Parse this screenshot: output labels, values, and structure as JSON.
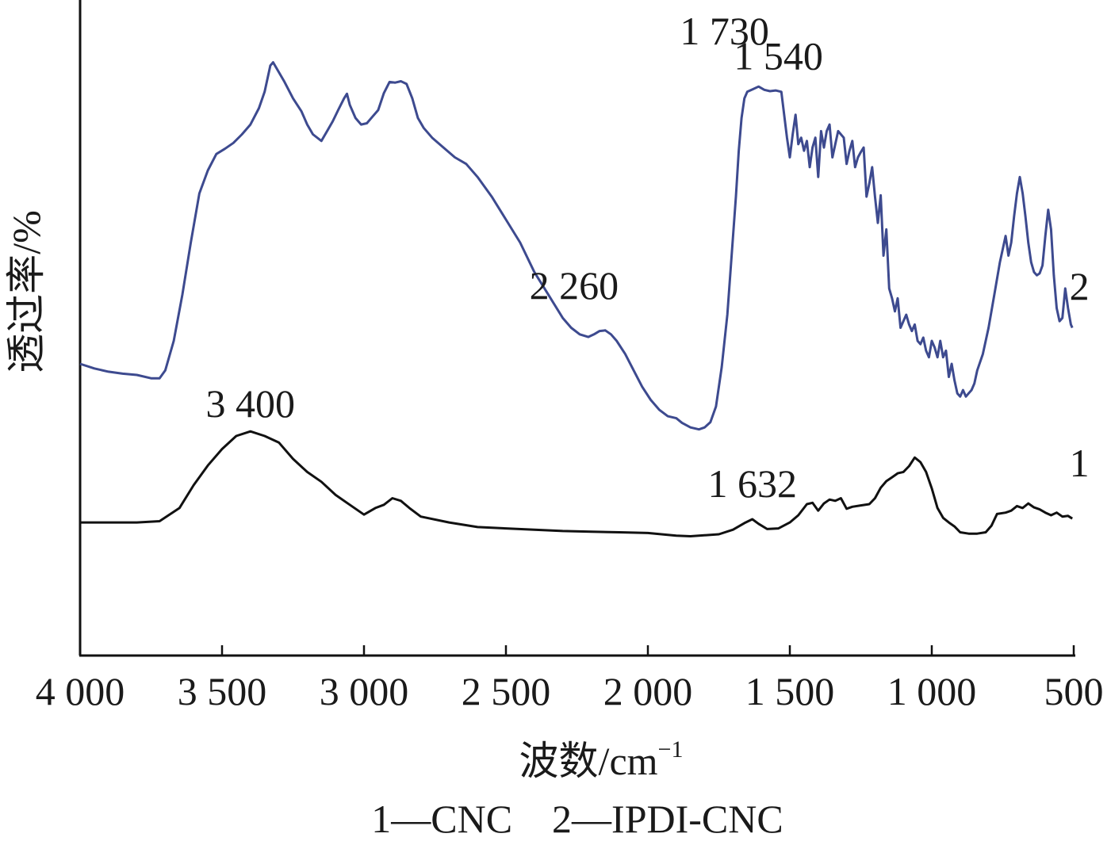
{
  "chart_data": {
    "type": "line",
    "xlabel": "波数/cm",
    "xlabel_superscript": "−1",
    "ylabel": "透过率/%",
    "xlim": [
      4000,
      500
    ],
    "x_reversed": true,
    "x_ticks": [
      {
        "value": 4000,
        "label": "4 000"
      },
      {
        "value": 3500,
        "label": "3 500"
      },
      {
        "value": 3000,
        "label": "3 000"
      },
      {
        "value": 2500,
        "label": "2 500"
      },
      {
        "value": 2000,
        "label": "2 000"
      },
      {
        "value": 1500,
        "label": "1 500"
      },
      {
        "value": 1000,
        "label": "1 000"
      },
      {
        "value": 500,
        "label": "500"
      }
    ],
    "ylim": [
      0,
      100
    ],
    "y_ticks_shown": false,
    "grid": false,
    "legend": {
      "placement": "bottom",
      "text": "1—CNC　2—IPDI-CNC"
    },
    "series": [
      {
        "name": "CNC",
        "id": "1",
        "color": "#111111",
        "points": [
          [
            4000,
            20.3
          ],
          [
            3900,
            20.3
          ],
          [
            3800,
            20.3
          ],
          [
            3720,
            20.5
          ],
          [
            3650,
            22.5
          ],
          [
            3600,
            26
          ],
          [
            3550,
            29
          ],
          [
            3500,
            31.5
          ],
          [
            3450,
            33.5
          ],
          [
            3400,
            34.2
          ],
          [
            3350,
            33.5
          ],
          [
            3300,
            32.5
          ],
          [
            3250,
            30
          ],
          [
            3200,
            28
          ],
          [
            3150,
            26.5
          ],
          [
            3100,
            24.5
          ],
          [
            3050,
            23
          ],
          [
            3000,
            21.5
          ],
          [
            2960,
            22.5
          ],
          [
            2930,
            23
          ],
          [
            2900,
            24
          ],
          [
            2870,
            23.6
          ],
          [
            2840,
            22.5
          ],
          [
            2800,
            21.2
          ],
          [
            2700,
            20.3
          ],
          [
            2600,
            19.6
          ],
          [
            2500,
            19.4
          ],
          [
            2400,
            19.2
          ],
          [
            2300,
            19
          ],
          [
            2200,
            18.9
          ],
          [
            2100,
            18.8
          ],
          [
            2000,
            18.7
          ],
          [
            1900,
            18.3
          ],
          [
            1850,
            18.2
          ],
          [
            1750,
            18.5
          ],
          [
            1700,
            19.2
          ],
          [
            1660,
            20.2
          ],
          [
            1632,
            20.8
          ],
          [
            1610,
            20.1
          ],
          [
            1580,
            19.3
          ],
          [
            1540,
            19.4
          ],
          [
            1500,
            20.3
          ],
          [
            1470,
            21.4
          ],
          [
            1440,
            23.1
          ],
          [
            1420,
            23.3
          ],
          [
            1400,
            22.1
          ],
          [
            1380,
            23.2
          ],
          [
            1360,
            23.8
          ],
          [
            1340,
            23.6
          ],
          [
            1320,
            24
          ],
          [
            1300,
            22.4
          ],
          [
            1280,
            22.7
          ],
          [
            1250,
            22.9
          ],
          [
            1220,
            23.1
          ],
          [
            1200,
            24
          ],
          [
            1180,
            25.6
          ],
          [
            1160,
            26.6
          ],
          [
            1140,
            27.2
          ],
          [
            1120,
            27.8
          ],
          [
            1100,
            28
          ],
          [
            1080,
            28.9
          ],
          [
            1060,
            30.2
          ],
          [
            1040,
            29.5
          ],
          [
            1020,
            28
          ],
          [
            1000,
            25.5
          ],
          [
            980,
            22.5
          ],
          [
            960,
            21
          ],
          [
            940,
            20.3
          ],
          [
            920,
            19.7
          ],
          [
            900,
            18.8
          ],
          [
            870,
            18.6
          ],
          [
            840,
            18.6
          ],
          [
            810,
            18.8
          ],
          [
            790,
            19.8
          ],
          [
            770,
            21.6
          ],
          [
            740,
            21.8
          ],
          [
            720,
            22.1
          ],
          [
            700,
            22.8
          ],
          [
            680,
            22.5
          ],
          [
            660,
            23.2
          ],
          [
            640,
            22.6
          ],
          [
            620,
            22.3
          ],
          [
            600,
            21.8
          ],
          [
            580,
            21.4
          ],
          [
            560,
            21.8
          ],
          [
            540,
            21.2
          ],
          [
            520,
            21.3
          ],
          [
            505,
            20.9
          ]
        ]
      },
      {
        "name": "IPDI-CNC",
        "id": "2",
        "color": "#3d4a8f",
        "points": [
          [
            4000,
            44.5
          ],
          [
            3950,
            43.8
          ],
          [
            3900,
            43.3
          ],
          [
            3850,
            43
          ],
          [
            3800,
            42.8
          ],
          [
            3750,
            42.3
          ],
          [
            3720,
            42.3
          ],
          [
            3700,
            43.5
          ],
          [
            3670,
            48
          ],
          [
            3640,
            55
          ],
          [
            3610,
            63
          ],
          [
            3580,
            70.5
          ],
          [
            3550,
            74
          ],
          [
            3520,
            76.5
          ],
          [
            3490,
            77.3
          ],
          [
            3460,
            78.2
          ],
          [
            3430,
            79.5
          ],
          [
            3400,
            81
          ],
          [
            3370,
            83.5
          ],
          [
            3350,
            86
          ],
          [
            3330,
            90
          ],
          [
            3320,
            90.5
          ],
          [
            3300,
            89
          ],
          [
            3280,
            87.5
          ],
          [
            3250,
            85
          ],
          [
            3220,
            83
          ],
          [
            3200,
            81
          ],
          [
            3180,
            79.5
          ],
          [
            3150,
            78.5
          ],
          [
            3130,
            80
          ],
          [
            3110,
            81.5
          ],
          [
            3090,
            83.3
          ],
          [
            3070,
            85
          ],
          [
            3060,
            85.7
          ],
          [
            3050,
            84
          ],
          [
            3030,
            82
          ],
          [
            3010,
            81
          ],
          [
            2990,
            81.2
          ],
          [
            2970,
            82.2
          ],
          [
            2950,
            83.2
          ],
          [
            2930,
            85.8
          ],
          [
            2910,
            87.5
          ],
          [
            2890,
            87.4
          ],
          [
            2870,
            87.6
          ],
          [
            2850,
            87.2
          ],
          [
            2830,
            85
          ],
          [
            2810,
            82
          ],
          [
            2790,
            80.5
          ],
          [
            2760,
            79
          ],
          [
            2720,
            77.5
          ],
          [
            2680,
            76
          ],
          [
            2640,
            75
          ],
          [
            2600,
            73
          ],
          [
            2550,
            70
          ],
          [
            2500,
            66.5
          ],
          [
            2450,
            63
          ],
          [
            2400,
            58.5
          ],
          [
            2350,
            55
          ],
          [
            2300,
            51.5
          ],
          [
            2270,
            50
          ],
          [
            2240,
            49
          ],
          [
            2210,
            48.6
          ],
          [
            2190,
            49
          ],
          [
            2170,
            49.5
          ],
          [
            2150,
            49.6
          ],
          [
            2130,
            49
          ],
          [
            2110,
            48
          ],
          [
            2080,
            46
          ],
          [
            2050,
            43.5
          ],
          [
            2020,
            41
          ],
          [
            1990,
            39
          ],
          [
            1960,
            37.5
          ],
          [
            1930,
            36.5
          ],
          [
            1900,
            36.2
          ],
          [
            1880,
            35.5
          ],
          [
            1850,
            34.8
          ],
          [
            1820,
            34.5
          ],
          [
            1800,
            34.8
          ],
          [
            1780,
            35.6
          ],
          [
            1760,
            38
          ],
          [
            1740,
            44
          ],
          [
            1720,
            52
          ],
          [
            1710,
            58
          ],
          [
            1700,
            64
          ],
          [
            1690,
            70
          ],
          [
            1680,
            77
          ],
          [
            1670,
            82
          ],
          [
            1660,
            85
          ],
          [
            1650,
            86
          ],
          [
            1630,
            86.4
          ],
          [
            1610,
            86.8
          ],
          [
            1590,
            86.3
          ],
          [
            1570,
            86.1
          ],
          [
            1550,
            86.2
          ],
          [
            1530,
            86
          ],
          [
            1510,
            79
          ],
          [
            1500,
            76
          ],
          [
            1490,
            79.5
          ],
          [
            1480,
            82.5
          ],
          [
            1470,
            78
          ],
          [
            1460,
            79
          ],
          [
            1450,
            77
          ],
          [
            1440,
            78.5
          ],
          [
            1430,
            74.5
          ],
          [
            1420,
            77.5
          ],
          [
            1410,
            79
          ],
          [
            1400,
            73
          ],
          [
            1390,
            80
          ],
          [
            1380,
            77.5
          ],
          [
            1370,
            80
          ],
          [
            1360,
            81
          ],
          [
            1350,
            76
          ],
          [
            1340,
            78
          ],
          [
            1330,
            80
          ],
          [
            1320,
            79.5
          ],
          [
            1310,
            79
          ],
          [
            1300,
            75
          ],
          [
            1290,
            77
          ],
          [
            1280,
            78.5
          ],
          [
            1270,
            74.5
          ],
          [
            1260,
            76
          ],
          [
            1250,
            76.8
          ],
          [
            1240,
            77.5
          ],
          [
            1230,
            70
          ],
          [
            1220,
            72
          ],
          [
            1210,
            74.5
          ],
          [
            1200,
            70
          ],
          [
            1190,
            66
          ],
          [
            1180,
            70.2
          ],
          [
            1170,
            61
          ],
          [
            1160,
            65
          ],
          [
            1150,
            56
          ],
          [
            1140,
            54.5
          ],
          [
            1130,
            52.5
          ],
          [
            1120,
            54.5
          ],
          [
            1110,
            50
          ],
          [
            1100,
            51
          ],
          [
            1090,
            52
          ],
          [
            1080,
            50.5
          ],
          [
            1070,
            49.5
          ],
          [
            1060,
            50.5
          ],
          [
            1050,
            48
          ],
          [
            1040,
            47.5
          ],
          [
            1030,
            48.5
          ],
          [
            1020,
            46.5
          ],
          [
            1010,
            45.5
          ],
          [
            1000,
            48
          ],
          [
            990,
            47
          ],
          [
            980,
            45.5
          ],
          [
            970,
            48
          ],
          [
            960,
            45.5
          ],
          [
            950,
            46.5
          ],
          [
            940,
            42.5
          ],
          [
            930,
            44.5
          ],
          [
            920,
            42
          ],
          [
            910,
            40
          ],
          [
            900,
            39.5
          ],
          [
            890,
            40.5
          ],
          [
            880,
            39.5
          ],
          [
            870,
            40
          ],
          [
            860,
            40.5
          ],
          [
            850,
            41.5
          ],
          [
            840,
            43.5
          ],
          [
            820,
            46
          ],
          [
            800,
            50
          ],
          [
            780,
            55
          ],
          [
            760,
            60
          ],
          [
            740,
            64
          ],
          [
            730,
            61
          ],
          [
            720,
            63
          ],
          [
            710,
            67
          ],
          [
            700,
            70.5
          ],
          [
            690,
            73
          ],
          [
            680,
            70.5
          ],
          [
            670,
            67
          ],
          [
            660,
            63
          ],
          [
            650,
            60
          ],
          [
            640,
            58.5
          ],
          [
            630,
            58
          ],
          [
            620,
            58.3
          ],
          [
            610,
            59.5
          ],
          [
            600,
            64
          ],
          [
            590,
            68
          ],
          [
            580,
            65
          ],
          [
            570,
            58
          ],
          [
            560,
            53
          ],
          [
            550,
            51
          ],
          [
            540,
            51.5
          ],
          [
            530,
            56
          ],
          [
            520,
            53
          ],
          [
            510,
            50.5
          ],
          [
            505,
            50
          ]
        ]
      }
    ],
    "annotations": [
      {
        "text": "1 730",
        "x": 1730,
        "y": 93.2
      },
      {
        "text": "1 540",
        "x": 1540,
        "y": 89.4
      },
      {
        "text": "2 260",
        "x": 2260,
        "y": 54.4
      },
      {
        "text": "3 400",
        "x": 3400,
        "y": 36.4
      },
      {
        "text": "1 632",
        "x": 1632,
        "y": 24.2
      }
    ],
    "series_labels": [
      {
        "text": "2",
        "x": 480,
        "y": 54.3
      },
      {
        "text": "1",
        "x": 480,
        "y": 27.3
      }
    ]
  }
}
